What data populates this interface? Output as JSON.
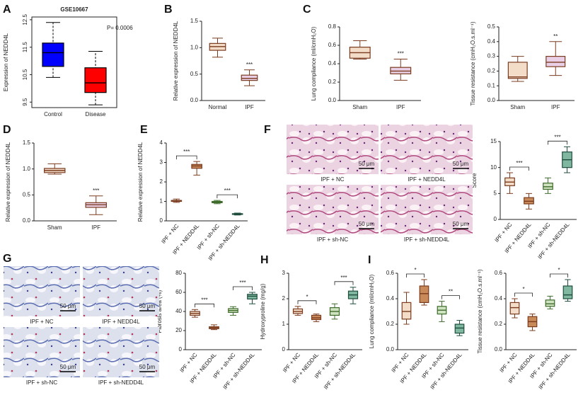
{
  "chart_data": [
    {
      "type": "box",
      "panel": "A",
      "title": "GSE10667",
      "ylabel": "Expression of NEDD4L",
      "annotation": "P= 0.0006",
      "frame": true,
      "categories": [
        "Control",
        "Disease"
      ],
      "stats": [
        [
          10.4,
          10.8,
          11.3,
          11.65,
          12.4
        ],
        [
          9.4,
          9.85,
          10.2,
          10.75,
          11.35
        ]
      ],
      "colors": [
        "#000000",
        "#000000"
      ],
      "fills": [
        "#0000ff",
        "#ff0000"
      ],
      "ylim": [
        9.3,
        12.6
      ],
      "yticks": [
        9.5,
        10.5,
        11.5,
        12.5
      ],
      "significance": []
    },
    {
      "type": "box",
      "panel": "B",
      "ylabel": "Relative expression of NEDD4L",
      "categories": [
        "Normal",
        "IPF"
      ],
      "stats": [
        [
          0.82,
          0.95,
          1.02,
          1.08,
          1.18
        ],
        [
          0.28,
          0.38,
          0.42,
          0.48,
          0.58
        ]
      ],
      "colors": [
        "#7a3b1e",
        "#7a3b1e"
      ],
      "fills": [
        "#f3dcc8",
        "#ead0e6"
      ],
      "ylim": [
        0,
        1.5
      ],
      "yticks": [
        {
          "value": 0,
          "label": "0.0"
        },
        0.5,
        {
          "value": 1,
          "label": "1.0"
        },
        1.5
      ],
      "significance": [
        {
          "label": "***",
          "groups": [
            1
          ]
        }
      ]
    },
    {
      "type": "box",
      "panel": "C",
      "ylabel": "Lung compliance (ml/cmH₂O)",
      "categories": [
        "Sham",
        "IPF"
      ],
      "stats": [
        [
          0.45,
          0.46,
          0.52,
          0.58,
          0.65
        ],
        [
          0.22,
          0.29,
          0.32,
          0.36,
          0.45
        ]
      ],
      "colors": [
        "#7a3b1e",
        "#7a3b1e"
      ],
      "fills": [
        "#f3dcc8",
        "#ead0e6"
      ],
      "ylim": [
        0,
        0.8
      ],
      "yticks": [
        {
          "value": 0,
          "label": "0.0"
        },
        0.2,
        0.4,
        0.6,
        0.8
      ],
      "significance": [
        {
          "label": "***",
          "groups": [
            1
          ]
        }
      ]
    },
    {
      "type": "box",
      "ylabel": "Tissue resistance (cmH₂O.s.ml⁻¹)",
      "categories": [
        "Sham",
        "IPF"
      ],
      "stats": [
        [
          0.13,
          0.15,
          0.16,
          0.26,
          0.3
        ],
        [
          0.17,
          0.23,
          0.26,
          0.3,
          0.4
        ]
      ],
      "colors": [
        "#7a3b1e",
        "#7a3b1e"
      ],
      "fills": [
        "#f3dcc8",
        "#ead0e6"
      ],
      "ylim": [
        0,
        0.5
      ],
      "yticks": [
        {
          "value": 0,
          "label": "0.0"
        },
        0.1,
        0.2,
        0.3,
        0.4,
        0.5
      ],
      "significance": [
        {
          "label": "**",
          "groups": [
            1
          ]
        }
      ]
    },
    {
      "type": "box",
      "panel": "D",
      "ylabel": "Relative expression of NEDD4L",
      "categories": [
        "Sham",
        "IPF"
      ],
      "stats": [
        [
          0.9,
          0.93,
          0.97,
          1.01,
          1.1
        ],
        [
          0.12,
          0.26,
          0.31,
          0.35,
          0.48
        ]
      ],
      "colors": [
        "#7a3b1e",
        "#7a3b1e"
      ],
      "fills": [
        "#f3dcc8",
        "#ead0e6"
      ],
      "ylim": [
        0,
        1.5
      ],
      "yticks": [
        {
          "value": 0,
          "label": "0.0"
        },
        0.5,
        {
          "value": 1,
          "label": "1.0"
        },
        1.5
      ],
      "significance": [
        {
          "label": "***",
          "groups": [
            1
          ]
        }
      ]
    },
    {
      "type": "box",
      "panel": "E",
      "ylabel": "Relative expression of NEDD4L",
      "categories": [
        "IPF + NC",
        "IPF + NEDD4L",
        "IPF + sh-NC",
        "IPF + sh-NEDD4L"
      ],
      "stats": [
        [
          0.95,
          1.0,
          1.02,
          1.05,
          1.12
        ],
        [
          2.35,
          2.7,
          2.82,
          2.9,
          3.05
        ],
        [
          0.88,
          0.93,
          0.97,
          1.0,
          1.05
        ],
        [
          0.3,
          0.33,
          0.35,
          0.37,
          0.4
        ]
      ],
      "colors": [
        "#7a3b1e",
        "#7a3b1e",
        "#3d6b2a",
        "#1f4d3d"
      ],
      "fills": [
        "#f3dcc8",
        "#c98a5a",
        "#cfe3c0",
        "#7fb7a0"
      ],
      "ylim": [
        0,
        4
      ],
      "yticks": [
        0,
        1,
        2,
        3,
        4
      ],
      "significance": [
        {
          "label": "***",
          "groups": [
            0,
            1
          ]
        },
        {
          "label": "***",
          "groups": [
            2,
            3
          ]
        }
      ]
    },
    {
      "type": "box",
      "ylabel": "Score",
      "categories": [
        "IPF + NC",
        "IPF + NEDD4L",
        "IPF + sh-NC",
        "IPF + sh-NEDD4L"
      ],
      "stats": [
        [
          5,
          6.5,
          7.2,
          8,
          9
        ],
        [
          2,
          3,
          3.5,
          4.2,
          5
        ],
        [
          5,
          5.8,
          6.3,
          7,
          8
        ],
        [
          9,
          10,
          11.5,
          13,
          14
        ]
      ],
      "colors": [
        "#7a3b1e",
        "#7a3b1e",
        "#3d6b2a",
        "#1f4d3d"
      ],
      "fills": [
        "#f3dcc8",
        "#c98a5a",
        "#cfe3c0",
        "#7fb7a0"
      ],
      "ylim": [
        0,
        15
      ],
      "yticks": [
        0,
        5,
        10,
        15
      ],
      "significance": [
        {
          "label": "***",
          "groups": [
            0,
            1
          ]
        },
        {
          "label": "***",
          "groups": [
            2,
            3
          ]
        }
      ]
    },
    {
      "type": "box",
      "ylabel": "Fibrosis area (%)",
      "categories": [
        "IPF + NC",
        "IPF + NEDD4L",
        "IPF + sh-NC",
        "IPF + sh-NEDD4L"
      ],
      "stats": [
        [
          34,
          36,
          38,
          40,
          42
        ],
        [
          21,
          22,
          23,
          24,
          26
        ],
        [
          36,
          39,
          41,
          43,
          45
        ],
        [
          48,
          53,
          56,
          58,
          60
        ]
      ],
      "colors": [
        "#7a3b1e",
        "#7a3b1e",
        "#3d6b2a",
        "#1f4d3d"
      ],
      "fills": [
        "#f3dcc8",
        "#c98a5a",
        "#cfe3c0",
        "#7fb7a0"
      ],
      "ylim": [
        0,
        80
      ],
      "yticks": [
        0,
        20,
        40,
        60,
        80
      ],
      "significance": [
        {
          "label": "***",
          "groups": [
            0,
            1
          ]
        },
        {
          "label": "***",
          "groups": [
            2,
            3
          ]
        }
      ]
    },
    {
      "type": "box",
      "panel": "H",
      "ylabel": "Hydroxyproline (mg/g)",
      "categories": [
        "IPF + NC",
        "IPF + NEDD4L",
        "IPF + sh-NC",
        "IPF + sh-NEDD4L"
      ],
      "stats": [
        [
          1.35,
          1.42,
          1.5,
          1.6,
          1.7
        ],
        [
          1.1,
          1.18,
          1.25,
          1.35,
          1.4
        ],
        [
          1.2,
          1.35,
          1.5,
          1.65,
          1.8
        ],
        [
          1.8,
          2.0,
          2.15,
          2.3,
          2.45
        ]
      ],
      "colors": [
        "#7a3b1e",
        "#7a3b1e",
        "#3d6b2a",
        "#1f4d3d"
      ],
      "fills": [
        "#f3dcc8",
        "#c98a5a",
        "#cfe3c0",
        "#7fb7a0"
      ],
      "ylim": [
        0,
        3
      ],
      "yticks": [
        0,
        1,
        2,
        3
      ],
      "significance": [
        {
          "label": "*",
          "groups": [
            0,
            1
          ]
        },
        {
          "label": "***",
          "groups": [
            2,
            3
          ]
        }
      ]
    },
    {
      "type": "box",
      "panel": "I",
      "ylabel": "Lung compliance (ml/cmH₂O)",
      "categories": [
        "IPF + NC",
        "IPF + NEDD4L",
        "IPF + sh-NC",
        "IPF + sh-NEDD4L"
      ],
      "stats": [
        [
          0.2,
          0.24,
          0.3,
          0.37,
          0.45
        ],
        [
          0.35,
          0.37,
          0.44,
          0.5,
          0.55
        ],
        [
          0.22,
          0.28,
          0.31,
          0.34,
          0.38
        ],
        [
          0.11,
          0.13,
          0.17,
          0.2,
          0.23
        ]
      ],
      "colors": [
        "#7a3b1e",
        "#7a3b1e",
        "#3d6b2a",
        "#1f4d3d"
      ],
      "fills": [
        "#f3dcc8",
        "#c98a5a",
        "#cfe3c0",
        "#7fb7a0"
      ],
      "ylim": [
        0,
        0.6
      ],
      "yticks": [
        {
          "value": 0,
          "label": "0.0"
        },
        0.2,
        0.4,
        0.6
      ],
      "significance": [
        {
          "label": "*",
          "groups": [
            0,
            1
          ]
        },
        {
          "label": "**",
          "groups": [
            2,
            3
          ]
        }
      ]
    },
    {
      "type": "box",
      "ylabel": "Tissue resistance (cmH₂O.s.ml⁻¹)",
      "categories": [
        "IPF + NC",
        "IPF + NEDD4L",
        "IPF + sh-NC",
        "IPF + sh-NEDD4L"
      ],
      "stats": [
        [
          0.25,
          0.28,
          0.33,
          0.37,
          0.4
        ],
        [
          0.15,
          0.18,
          0.22,
          0.26,
          0.28
        ],
        [
          0.32,
          0.34,
          0.36,
          0.39,
          0.42
        ],
        [
          0.38,
          0.4,
          0.43,
          0.5,
          0.55
        ]
      ],
      "colors": [
        "#7a3b1e",
        "#7a3b1e",
        "#3d6b2a",
        "#1f4d3d"
      ],
      "fills": [
        "#f3dcc8",
        "#c98a5a",
        "#cfe3c0",
        "#7fb7a0"
      ],
      "ylim": [
        0,
        0.6
      ],
      "yticks": [
        {
          "value": 0,
          "label": "0.0"
        },
        0.2,
        0.4,
        0.6
      ],
      "significance": [
        {
          "label": "*",
          "groups": [
            0,
            1
          ]
        },
        {
          "label": "*",
          "groups": [
            2,
            3
          ]
        }
      ]
    }
  ],
  "images": [
    {
      "panel": "F",
      "stain": "he",
      "tiles": [
        {
          "label": "IPF + NC",
          "scale": "50 μm"
        },
        {
          "label": "IPF + NEDD4L",
          "scale": "50 μm"
        },
        {
          "label": "IPF + sh-NC",
          "scale": "50 μm"
        },
        {
          "label": "IPF + sh-NEDD4L",
          "scale": "50 μm"
        }
      ]
    },
    {
      "panel": "G",
      "stain": "masson",
      "tiles": [
        {
          "label": "IPF + NC",
          "scale": "50 μm"
        },
        {
          "label": "IPF + NEDD4L",
          "scale": "50 μm"
        },
        {
          "label": "IPF + sh-NC",
          "scale": "50 μm"
        },
        {
          "label": "IPF + sh-NEDD4L",
          "scale": "50 μm"
        }
      ]
    }
  ]
}
